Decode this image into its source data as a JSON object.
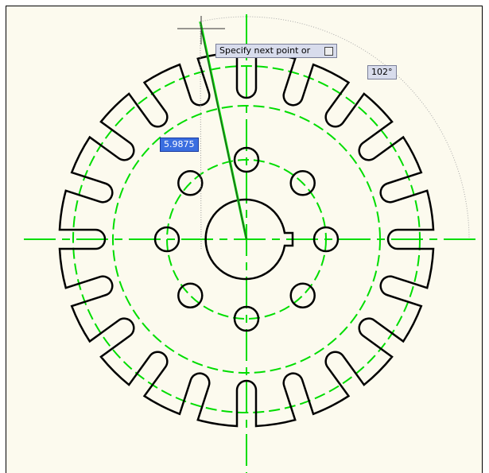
{
  "prompt": "Specify next point or",
  "angle_label": "102°",
  "distance_input": "5.9875"
}
